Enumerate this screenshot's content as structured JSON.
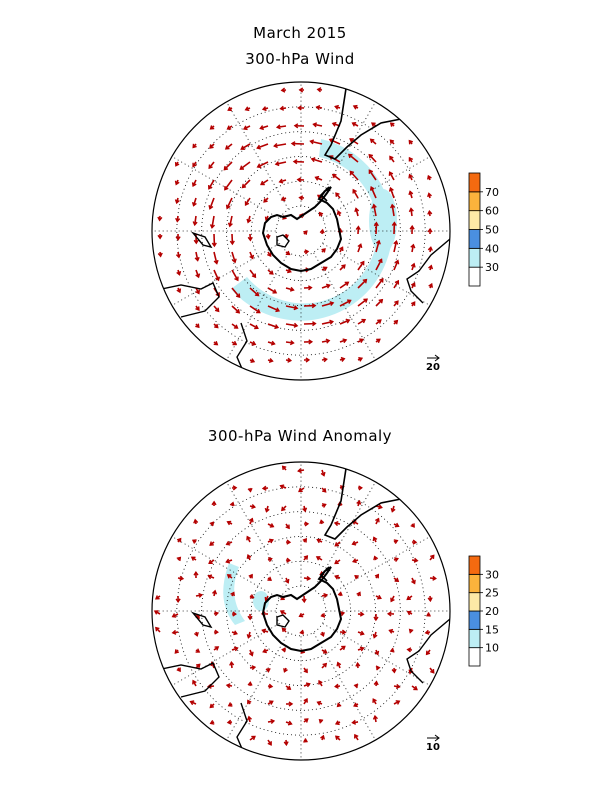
{
  "title": "March 2015",
  "panels": [
    {
      "id": "wind",
      "title": "300-hPa Wind",
      "colorbar": {
        "labels": [
          "30",
          "40",
          "50",
          "60",
          "70"
        ],
        "colors": [
          "#ffffff",
          "#bdeef4",
          "#4a8fe0",
          "#fde9a6",
          "#fbb33c",
          "#f46a10"
        ]
      },
      "reference_vector_label": "20",
      "vector_color": "#b40000"
    },
    {
      "id": "anomaly",
      "title": "300-hPa Wind Anomaly",
      "colorbar": {
        "labels": [
          "10",
          "15",
          "20",
          "25",
          "30"
        ],
        "colors": [
          "#ffffff",
          "#bdeef4",
          "#4a8fe0",
          "#fde9a6",
          "#fbb33c",
          "#f46a10"
        ]
      },
      "reference_vector_label": "10",
      "vector_color": "#b40000"
    }
  ],
  "colors": {
    "shading": "#bdeef4",
    "coast": "#000000",
    "grid": "#000000"
  }
}
